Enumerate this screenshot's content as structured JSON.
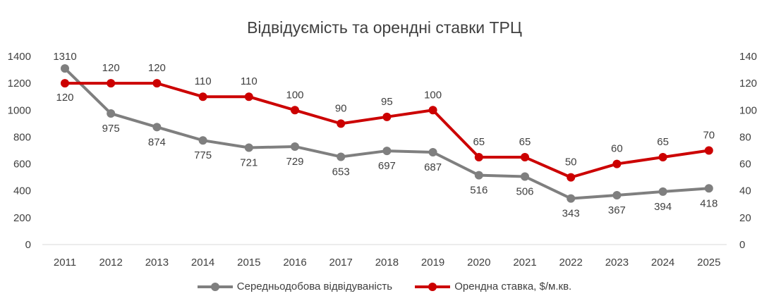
{
  "colors": {
    "visitors": "#7f7f7f",
    "rent": "#cc0000",
    "grid": "#d9d9d9",
    "text": "#404040"
  },
  "chart_data": {
    "type": "line",
    "title": "Відвідуємість та орендні ставки ТРЦ",
    "categories": [
      "2011",
      "2012",
      "2013",
      "2014",
      "2015",
      "2016",
      "2017",
      "2018",
      "2019",
      "2020",
      "2021",
      "2022",
      "2023",
      "2024",
      "2025"
    ],
    "series": [
      {
        "name": "Середньодобова відвідуваність",
        "axis": "left",
        "values": [
          1310,
          975,
          874,
          775,
          721,
          729,
          653,
          697,
          687,
          516,
          506,
          343,
          367,
          394,
          418
        ]
      },
      {
        "name": "Орендна ставка, $/м.кв.",
        "axis": "right",
        "values": [
          120,
          120,
          120,
          110,
          110,
          100,
          90,
          95,
          100,
          65,
          65,
          50,
          60,
          65,
          70
        ]
      }
    ],
    "y_left": {
      "range": [
        0,
        1400
      ],
      "ticks": [
        "0",
        "200",
        "400",
        "600",
        "800",
        "1000",
        "1200",
        "1400"
      ]
    },
    "y_right": {
      "range": [
        0,
        140
      ],
      "ticks": [
        "0",
        "20",
        "40",
        "60",
        "80",
        "100",
        "120",
        "140"
      ]
    },
    "grid": false,
    "legend": "bottom"
  }
}
